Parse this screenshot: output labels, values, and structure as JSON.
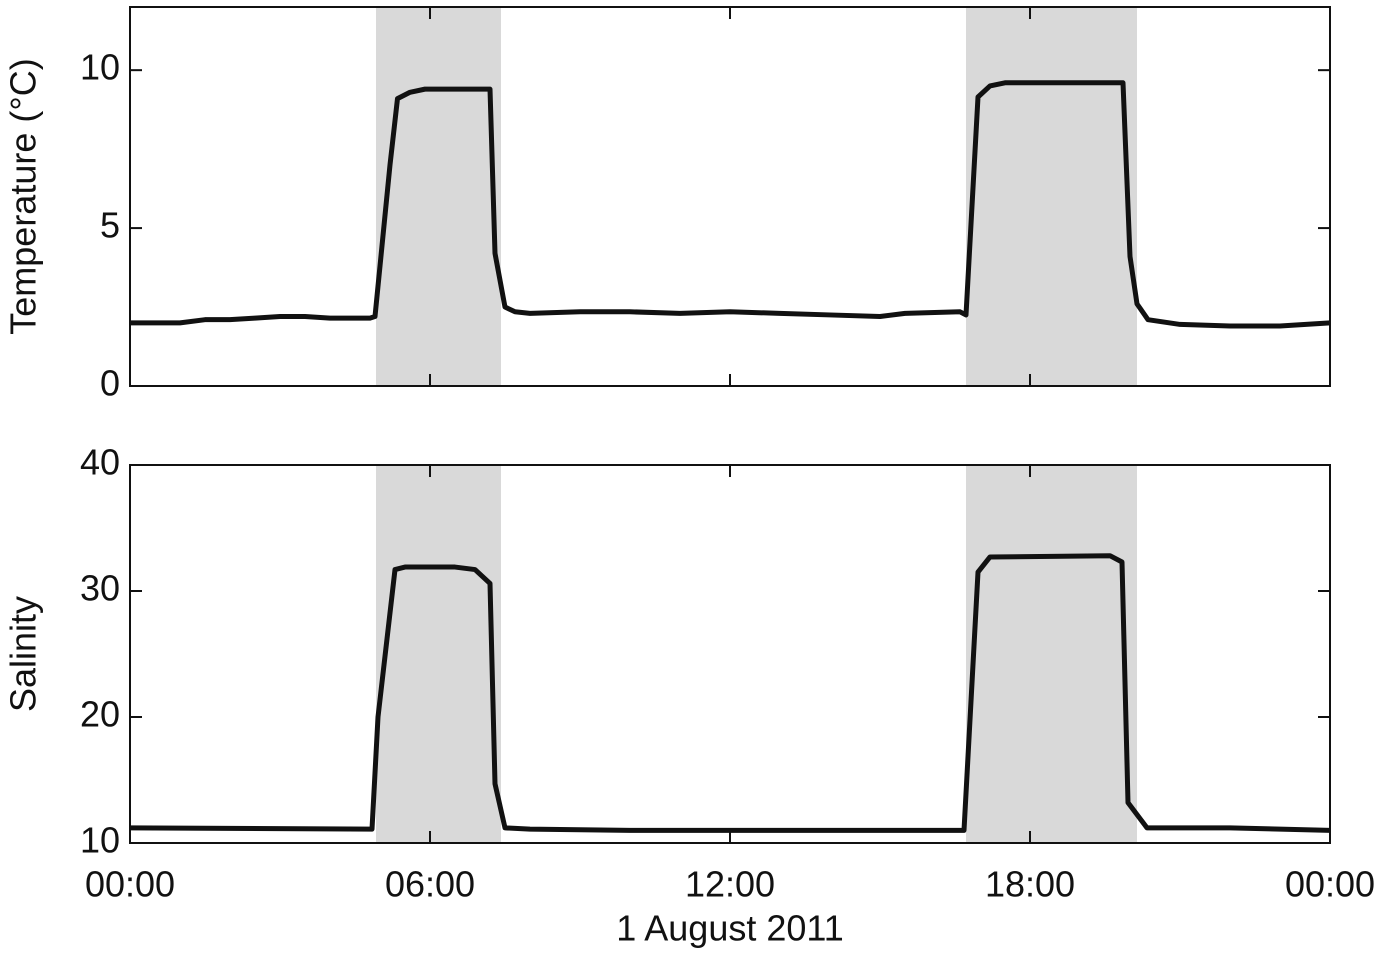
{
  "chart_data": [
    {
      "type": "line",
      "ylabel": "Temperature (°C)",
      "color": "#111111",
      "xlim": [
        0,
        24
      ],
      "xticks": [
        0,
        6,
        12,
        18,
        24
      ],
      "ylim": [
        0,
        12
      ],
      "yticks": [
        0,
        5,
        10
      ],
      "shaded_regions": [
        [
          4.92,
          7.42
        ],
        [
          16.72,
          20.14
        ]
      ],
      "shade_color": "#d9d9d9",
      "x": [
        0,
        0.5,
        1,
        1.5,
        2,
        2.5,
        3,
        3.5,
        4,
        4.8,
        4.9,
        5.2,
        5.35,
        5.6,
        5.9,
        7.2,
        7.3,
        7.5,
        7.7,
        8,
        9,
        10,
        11,
        12,
        13,
        14,
        15,
        15.5,
        16.6,
        16.72,
        16.96,
        17.2,
        17.5,
        19.86,
        20,
        20.14,
        20.36,
        21,
        22,
        23,
        24
      ],
      "values": [
        2.0,
        2.0,
        2.0,
        2.1,
        2.1,
        2.15,
        2.2,
        2.2,
        2.15,
        2.15,
        2.2,
        7.0,
        9.1,
        9.3,
        9.4,
        9.4,
        4.2,
        2.5,
        2.35,
        2.3,
        2.35,
        2.35,
        2.3,
        2.35,
        2.3,
        2.25,
        2.2,
        2.3,
        2.35,
        2.25,
        9.15,
        9.5,
        9.6,
        9.6,
        4.1,
        2.6,
        2.1,
        1.95,
        1.9,
        1.9,
        2.0
      ]
    },
    {
      "type": "line",
      "ylabel": "Salinity",
      "xlabel": "1 August 2011",
      "color": "#111111",
      "xlim": [
        0,
        24
      ],
      "xticks": [
        {
          "value": 0,
          "label": "00:00"
        },
        {
          "value": 6,
          "label": "06:00"
        },
        {
          "value": 12,
          "label": "12:00"
        },
        {
          "value": 18,
          "label": "18:00"
        },
        {
          "value": 24,
          "label": "00:00"
        }
      ],
      "ylim": [
        10,
        40
      ],
      "yticks": [
        10,
        20,
        30,
        40
      ],
      "shaded_regions": [
        [
          4.92,
          7.42
        ],
        [
          16.72,
          20.14
        ]
      ],
      "shade_color": "#d9d9d9",
      "x": [
        0,
        4.84,
        4.96,
        5.3,
        5.5,
        6.5,
        6.9,
        7.2,
        7.3,
        7.5,
        8,
        10,
        12,
        14,
        16.68,
        16.96,
        17.2,
        19.6,
        19.84,
        19.96,
        20.34,
        22,
        24
      ],
      "values": [
        11.2,
        11.1,
        20,
        31.7,
        31.9,
        31.9,
        31.7,
        30.6,
        14.7,
        11.2,
        11.1,
        11.0,
        11.0,
        11.0,
        11.0,
        31.5,
        32.7,
        32.8,
        32.3,
        13.2,
        11.2,
        11.2,
        11.0
      ]
    }
  ]
}
